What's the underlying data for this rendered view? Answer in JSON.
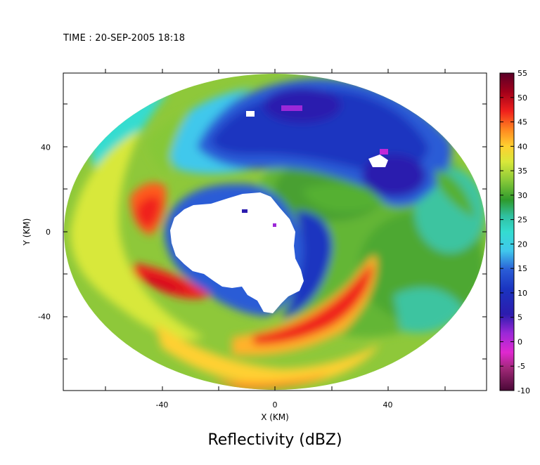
{
  "time_text": "TIME : 20-SEP-2005 18:18",
  "chart_data": {
    "type": "heatmap",
    "title": "Reflectivity (dBZ)",
    "xlabel": "X (KM)",
    "ylabel": "Y (KM)",
    "xlim": [
      -75,
      75
    ],
    "ylim": [
      -75,
      75
    ],
    "x_ticks": [
      -40,
      0,
      40
    ],
    "y_ticks": [
      -40,
      0,
      40
    ],
    "colorbar": {
      "min": -10,
      "max": 55,
      "ticks": [
        55,
        50,
        45,
        40,
        35,
        30,
        25,
        20,
        15,
        10,
        5,
        0,
        -5,
        -10
      ],
      "colors": [
        "#5a0028",
        "#7a0a2a",
        "#a3001a",
        "#d3001e",
        "#f0201c",
        "#ff5a1a",
        "#ff8a20",
        "#ffb22a",
        "#ffd030",
        "#f4ec38",
        "#d8e83a",
        "#b4dc36",
        "#86c838",
        "#54b032",
        "#2e9a2c",
        "#2ea25a",
        "#30c0a0",
        "#34dcd0",
        "#40c8ec",
        "#3c96e6",
        "#2a5cd6",
        "#1a34c0",
        "#2c1cae",
        "#6a20c8",
        "#9c28d8",
        "#c028d8",
        "#e028d0",
        "#d040a8",
        "#a02878",
        "#701855",
        "#4a0836"
      ]
    },
    "features": [
      "Radar reflectivity field of a hurricane, circular coverage of ~75 km radius",
      "Cloud-free eye (no echo) centered near x=-10 km, y=0 km",
      "Intense eyewall (45-50 dBZ) southeast of the eye, from x=0..35 km, y=-10..-50 km",
      "Rainbands spiraling in the west and southwest quadrants (40-50 dBZ)",
      "Weak echoes (10-20 dBZ) north of the eye, y=20..60 km"
    ]
  }
}
